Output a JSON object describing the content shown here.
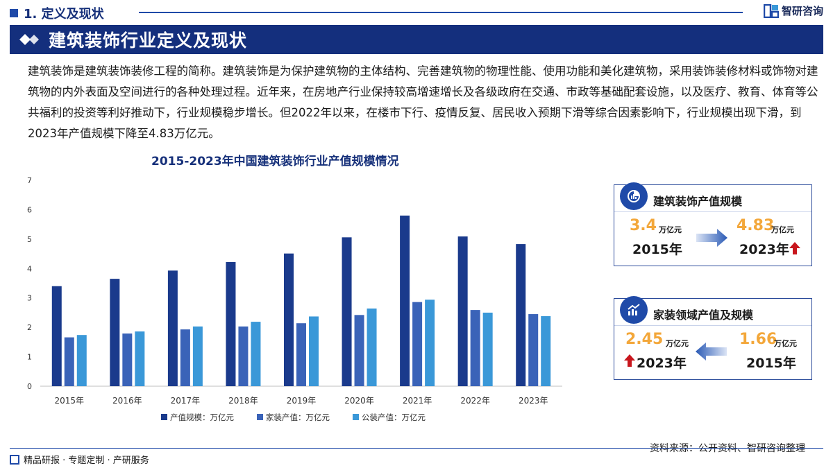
{
  "header": {
    "section_label": "1. 定义及现状",
    "brand": "智研咨询"
  },
  "banner": {
    "title": "建筑装饰行业定义及现状"
  },
  "intro": "建筑装饰是建筑装饰装修工程的简称。建筑装饰是为保护建筑物的主体结构、完善建筑物的物理性能、使用功能和美化建筑物，采用装饰装修材料或饰物对建筑物的内外表面及空间进行的各种处理过程。近年来，在房地产行业保持较高增速增长及各级政府在交通、市政等基础配套设施，以及医疗、教育、体育等公共福利的投资等利好推动下，行业规模稳步增长。但2022年以来，在楼市下行、疫情反复、居民收入预期下滑等综合因素影响下，行业规模出现下滑，到2023年产值规模下降至4.83万亿元。",
  "chart_data": {
    "type": "bar",
    "title": "2015-2023年中国建筑装饰行业产值规模情况",
    "categories": [
      "2015年",
      "2016年",
      "2017年",
      "2018年",
      "2019年",
      "2020年",
      "2021年",
      "2022年",
      "2023年"
    ],
    "series": [
      {
        "name": "产值规模：万亿元",
        "color": "#1a3a8c",
        "values": [
          3.4,
          3.65,
          3.93,
          4.22,
          4.51,
          5.06,
          5.8,
          5.09,
          4.83
        ]
      },
      {
        "name": "家装产值：万亿元",
        "color": "#3a63b8",
        "values": [
          1.66,
          1.79,
          1.93,
          2.03,
          2.14,
          2.42,
          2.86,
          2.59,
          2.45
        ]
      },
      {
        "name": "公装产值：万亿元",
        "color": "#3a98d8",
        "values": [
          1.74,
          1.86,
          2.03,
          2.19,
          2.37,
          2.64,
          2.94,
          2.5,
          2.38
        ]
      }
    ],
    "ylim": [
      0,
      7
    ],
    "yticks": [
      0,
      1,
      2,
      3,
      4,
      5,
      6,
      7
    ],
    "grid": false,
    "legend": "bottom"
  },
  "card1": {
    "title": "建筑装饰产值规模",
    "left_value": "3.4",
    "left_unit": "万亿元",
    "left_year": "2015年",
    "right_value": "4.83",
    "right_unit": "万亿元",
    "right_year": "2023年"
  },
  "card2": {
    "title": "家装领域产值及规模",
    "left_value": "2.45",
    "left_unit": "万亿元",
    "left_year": "2023年",
    "right_value": "1.66",
    "right_unit": "万亿元",
    "right_year": "2015年"
  },
  "footer": {
    "left": "精品研报 · 专题定制 · 产研服务",
    "source": "资料来源：公开资料、智研咨询整理"
  }
}
